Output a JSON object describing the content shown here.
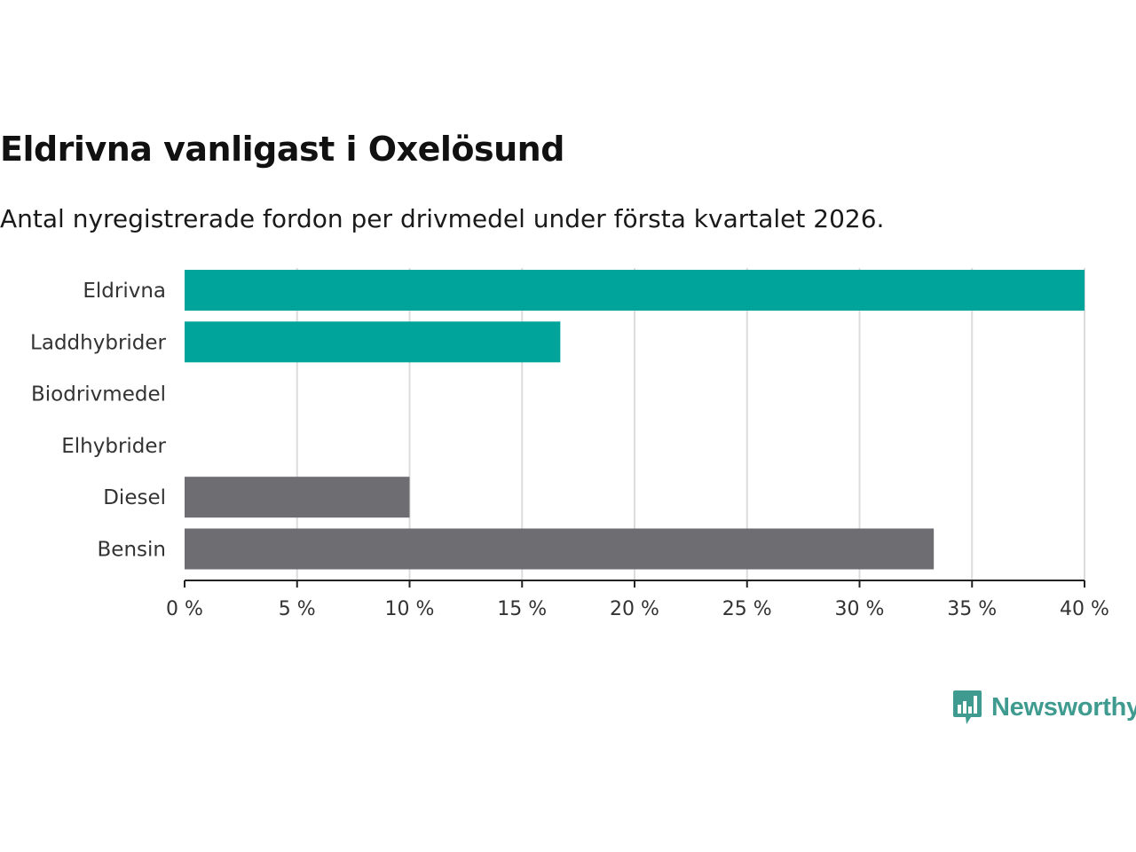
{
  "title": "Eldrivna vanligast i Oxelösund",
  "subtitle": "Antal nyregistrerade fordon per drivmedel under första kvartalet 2026.",
  "chart_data": {
    "type": "bar",
    "orientation": "horizontal",
    "categories": [
      "Eldrivna",
      "Laddhybrider",
      "Biodrivmedel",
      "Elhybrider",
      "Diesel",
      "Bensin"
    ],
    "values": [
      40,
      16.7,
      0,
      0,
      10,
      33.3
    ],
    "colors": [
      "#00a49a",
      "#00a49a",
      "#00a49a",
      "#00a49a",
      "#6e6d72",
      "#6e6d72"
    ],
    "xlim": [
      0,
      40
    ],
    "xticks": [
      0,
      5,
      10,
      15,
      20,
      25,
      30,
      35,
      40
    ],
    "tick_suffix": " %",
    "xlabel": "",
    "ylabel": "",
    "grid": true
  },
  "brand": {
    "name": "Newsworthy",
    "color": "#3f9b8f",
    "icon": "bar-chart-speech-bubble-icon"
  }
}
